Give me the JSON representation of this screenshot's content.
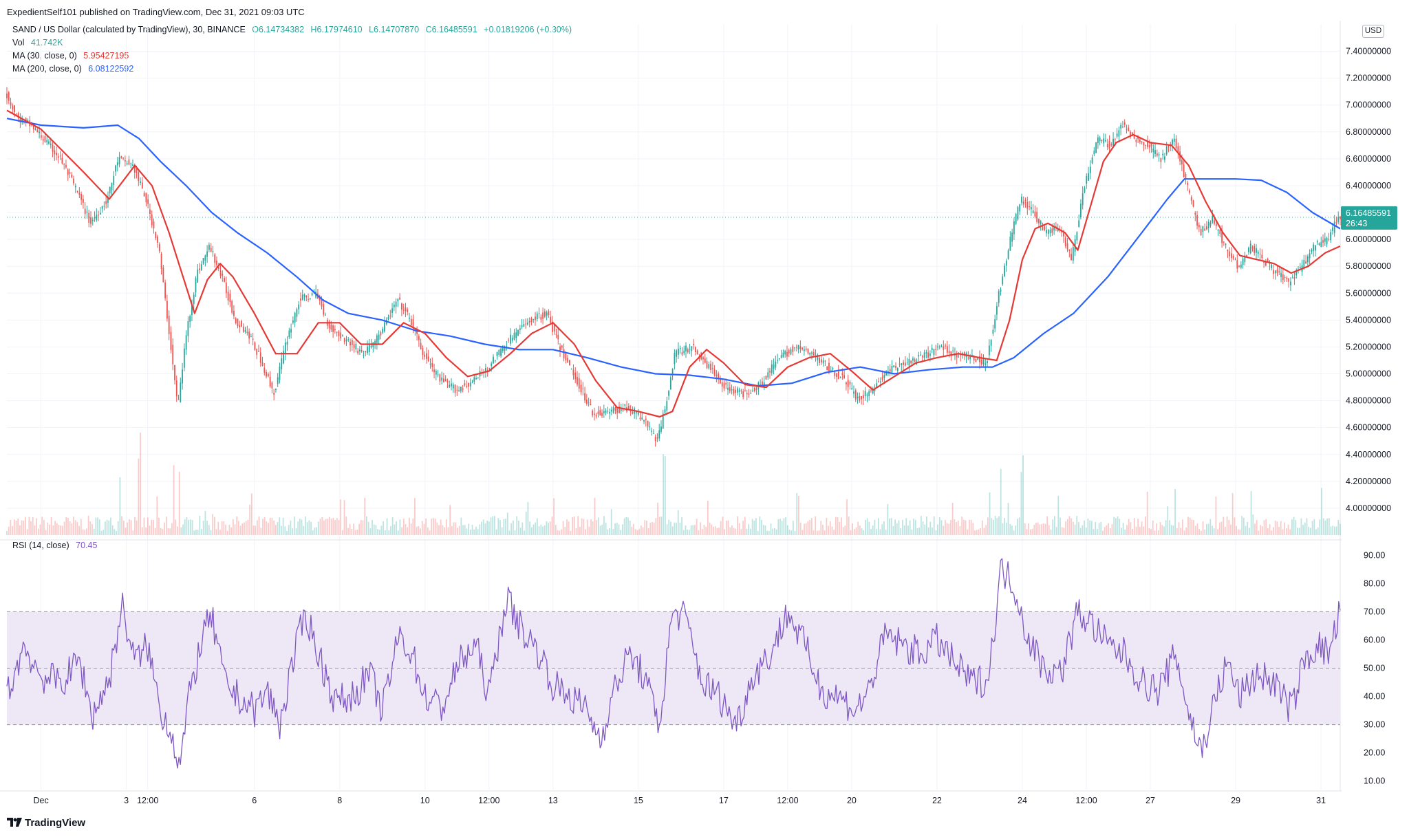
{
  "header": {
    "title": "ExpedientSelf101 published on TradingView.com, Dec 31, 2021 09:03 UTC"
  },
  "legend": {
    "symbol": "SAND / US Dollar (calculated by TradingView), 30, BINANCE",
    "open": "O6.14734382",
    "high": "H6.17974610",
    "low": "L6.14707870",
    "close": "C6.16485591",
    "change": "+0.01819206 (+0.30%)",
    "vol_label": "Vol",
    "vol_value": "41.742K",
    "ma30_label": "MA (30, close, 0)",
    "ma30_value": "5.95427195",
    "ma200_label": "MA (200, close, 0)",
    "ma200_value": "6.08122592",
    "rsi_label": "RSI (14, close)",
    "rsi_value": "70.45"
  },
  "price_axis": {
    "unit": "USD",
    "last_price": "6.16485591",
    "countdown": "26:43"
  },
  "brand": {
    "name": "TradingView"
  },
  "colors": {
    "up": "#26a69a",
    "down": "#ef5350",
    "ma30": "#e53935",
    "ma200": "#2962ff",
    "rsi": "#7e57c2",
    "rsi_band": "#ede7f6",
    "grid": "#f0f3fa"
  },
  "chart_data": [
    {
      "type": "candlestick",
      "title": "SAND / US Dollar (calculated by TradingView), 30, BINANCE",
      "timeframe": "30",
      "ylim": [
        3.8,
        7.5
      ],
      "y_ticks": [
        "7.40000000",
        "7.20000000",
        "7.00000000",
        "6.80000000",
        "6.60000000",
        "6.40000000",
        "6.20000000",
        "6.00000000",
        "5.80000000",
        "5.60000000",
        "5.40000000",
        "5.20000000",
        "5.00000000",
        "4.80000000",
        "4.60000000",
        "4.40000000",
        "4.20000000",
        "4.00000000"
      ],
      "x_ticks": [
        "Dec",
        "3",
        "12:00",
        "6",
        "8",
        "10",
        "12:00",
        "13",
        "15",
        "17",
        "12:00",
        "20",
        "22",
        "24",
        "12:00",
        "27",
        "29",
        "31"
      ],
      "x_tick_days": [
        1,
        3,
        3.5,
        6,
        8,
        10,
        11.5,
        13,
        15,
        17,
        18.5,
        20,
        22,
        24,
        25.5,
        27,
        29,
        31
      ],
      "x_range_days": [
        0.2,
        31.45
      ],
      "price_path": [
        [
          0.2,
          7.1
        ],
        [
          0.5,
          6.9
        ],
        [
          0.8,
          6.85
        ],
        [
          1.1,
          6.75
        ],
        [
          1.5,
          6.6
        ],
        [
          1.9,
          6.35
        ],
        [
          2.2,
          6.12
        ],
        [
          2.6,
          6.3
        ],
        [
          2.85,
          6.6
        ],
        [
          3.2,
          6.55
        ],
        [
          3.5,
          6.3
        ],
        [
          3.8,
          5.95
        ],
        [
          4.05,
          5.3
        ],
        [
          4.25,
          4.75
        ],
        [
          4.45,
          5.3
        ],
        [
          4.7,
          5.75
        ],
        [
          5.0,
          5.95
        ],
        [
          5.3,
          5.7
        ],
        [
          5.6,
          5.4
        ],
        [
          5.9,
          5.3
        ],
        [
          6.2,
          5.1
        ],
        [
          6.5,
          4.85
        ],
        [
          6.8,
          5.25
        ],
        [
          7.1,
          5.55
        ],
        [
          7.5,
          5.6
        ],
        [
          7.8,
          5.35
        ],
        [
          8.2,
          5.25
        ],
        [
          8.6,
          5.15
        ],
        [
          9.0,
          5.3
        ],
        [
          9.4,
          5.55
        ],
        [
          9.7,
          5.4
        ],
        [
          10.0,
          5.15
        ],
        [
          10.4,
          4.95
        ],
        [
          10.8,
          4.88
        ],
        [
          11.2,
          4.95
        ],
        [
          11.6,
          5.08
        ],
        [
          12.0,
          5.25
        ],
        [
          12.5,
          5.4
        ],
        [
          12.9,
          5.45
        ],
        [
          13.2,
          5.2
        ],
        [
          13.6,
          4.95
        ],
        [
          14.0,
          4.7
        ],
        [
          14.4,
          4.72
        ],
        [
          14.8,
          4.75
        ],
        [
          15.2,
          4.65
        ],
        [
          15.5,
          4.5
        ],
        [
          15.7,
          4.8
        ],
        [
          15.9,
          5.15
        ],
        [
          16.3,
          5.2
        ],
        [
          16.7,
          5.05
        ],
        [
          17.1,
          4.9
        ],
        [
          17.5,
          4.85
        ],
        [
          17.9,
          4.92
        ],
        [
          18.3,
          5.1
        ],
        [
          18.7,
          5.2
        ],
        [
          19.1,
          5.15
        ],
        [
          19.5,
          5.05
        ],
        [
          19.9,
          4.95
        ],
        [
          20.2,
          4.8
        ],
        [
          20.5,
          4.88
        ],
        [
          20.9,
          5.02
        ],
        [
          21.3,
          5.08
        ],
        [
          21.7,
          5.12
        ],
        [
          22.1,
          5.2
        ],
        [
          22.5,
          5.15
        ],
        [
          22.9,
          5.12
        ],
        [
          23.2,
          5.08
        ],
        [
          23.5,
          5.6
        ],
        [
          23.8,
          6.05
        ],
        [
          24.0,
          6.3
        ],
        [
          24.3,
          6.2
        ],
        [
          24.6,
          6.05
        ],
        [
          24.9,
          6.1
        ],
        [
          25.2,
          5.85
        ],
        [
          25.5,
          6.4
        ],
        [
          25.8,
          6.75
        ],
        [
          26.1,
          6.7
        ],
        [
          26.4,
          6.85
        ],
        [
          26.7,
          6.75
        ],
        [
          27.0,
          6.7
        ],
        [
          27.3,
          6.6
        ],
        [
          27.6,
          6.75
        ],
        [
          27.9,
          6.4
        ],
        [
          28.2,
          6.05
        ],
        [
          28.5,
          6.15
        ],
        [
          28.8,
          5.95
        ],
        [
          29.1,
          5.8
        ],
        [
          29.4,
          5.95
        ],
        [
          29.7,
          5.85
        ],
        [
          30.0,
          5.75
        ],
        [
          30.3,
          5.68
        ],
        [
          30.6,
          5.8
        ],
        [
          30.9,
          5.95
        ],
        [
          31.2,
          6.0
        ],
        [
          31.45,
          6.16
        ]
      ],
      "ma30": [
        [
          0.2,
          6.96
        ],
        [
          1.0,
          6.82
        ],
        [
          2.0,
          6.5
        ],
        [
          2.6,
          6.3
        ],
        [
          3.2,
          6.55
        ],
        [
          3.6,
          6.4
        ],
        [
          4.0,
          6.05
        ],
        [
          4.3,
          5.75
        ],
        [
          4.6,
          5.45
        ],
        [
          4.9,
          5.7
        ],
        [
          5.2,
          5.82
        ],
        [
          5.5,
          5.72
        ],
        [
          6.0,
          5.45
        ],
        [
          6.5,
          5.15
        ],
        [
          7.0,
          5.15
        ],
        [
          7.5,
          5.38
        ],
        [
          8.0,
          5.38
        ],
        [
          8.5,
          5.22
        ],
        [
          9.0,
          5.22
        ],
        [
          9.5,
          5.38
        ],
        [
          10.0,
          5.3
        ],
        [
          10.5,
          5.12
        ],
        [
          11.0,
          4.98
        ],
        [
          11.5,
          5.02
        ],
        [
          12.0,
          5.15
        ],
        [
          12.5,
          5.3
        ],
        [
          13.0,
          5.38
        ],
        [
          13.5,
          5.22
        ],
        [
          14.0,
          4.95
        ],
        [
          14.5,
          4.75
        ],
        [
          15.0,
          4.72
        ],
        [
          15.5,
          4.68
        ],
        [
          15.8,
          4.72
        ],
        [
          16.2,
          5.05
        ],
        [
          16.6,
          5.18
        ],
        [
          17.0,
          5.08
        ],
        [
          17.5,
          4.92
        ],
        [
          18.0,
          4.9
        ],
        [
          18.5,
          5.05
        ],
        [
          19.0,
          5.12
        ],
        [
          19.5,
          5.15
        ],
        [
          20.0,
          5.02
        ],
        [
          20.5,
          4.88
        ],
        [
          21.0,
          4.98
        ],
        [
          21.5,
          5.08
        ],
        [
          22.0,
          5.12
        ],
        [
          22.5,
          5.15
        ],
        [
          23.0,
          5.12
        ],
        [
          23.4,
          5.1
        ],
        [
          23.7,
          5.4
        ],
        [
          24.0,
          5.85
        ],
        [
          24.3,
          6.08
        ],
        [
          24.6,
          6.12
        ],
        [
          25.0,
          6.05
        ],
        [
          25.3,
          5.92
        ],
        [
          25.6,
          6.25
        ],
        [
          25.9,
          6.58
        ],
        [
          26.2,
          6.72
        ],
        [
          26.6,
          6.78
        ],
        [
          27.0,
          6.72
        ],
        [
          27.5,
          6.7
        ],
        [
          27.9,
          6.55
        ],
        [
          28.3,
          6.28
        ],
        [
          28.7,
          6.05
        ],
        [
          29.1,
          5.88
        ],
        [
          29.5,
          5.85
        ],
        [
          29.9,
          5.82
        ],
        [
          30.3,
          5.75
        ],
        [
          30.7,
          5.8
        ],
        [
          31.1,
          5.9
        ],
        [
          31.45,
          5.95
        ]
      ],
      "ma200": [
        [
          0.2,
          6.9
        ],
        [
          1.0,
          6.85
        ],
        [
          2.0,
          6.83
        ],
        [
          2.8,
          6.85
        ],
        [
          3.3,
          6.75
        ],
        [
          3.8,
          6.58
        ],
        [
          4.4,
          6.4
        ],
        [
          5.0,
          6.2
        ],
        [
          5.6,
          6.05
        ],
        [
          6.3,
          5.9
        ],
        [
          7.0,
          5.72
        ],
        [
          7.6,
          5.55
        ],
        [
          8.2,
          5.45
        ],
        [
          9.0,
          5.4
        ],
        [
          9.8,
          5.32
        ],
        [
          10.6,
          5.28
        ],
        [
          11.4,
          5.22
        ],
        [
          12.2,
          5.18
        ],
        [
          13.0,
          5.18
        ],
        [
          13.8,
          5.12
        ],
        [
          14.6,
          5.05
        ],
        [
          15.4,
          5.0
        ],
        [
          16.2,
          4.99
        ],
        [
          17.0,
          4.96
        ],
        [
          17.8,
          4.91
        ],
        [
          18.6,
          4.93
        ],
        [
          19.4,
          5.01
        ],
        [
          20.2,
          5.05
        ],
        [
          21.0,
          5.0
        ],
        [
          21.8,
          5.03
        ],
        [
          22.6,
          5.05
        ],
        [
          23.3,
          5.05
        ],
        [
          23.8,
          5.12
        ],
        [
          24.5,
          5.3
        ],
        [
          25.2,
          5.45
        ],
        [
          26.0,
          5.72
        ],
        [
          26.8,
          6.05
        ],
        [
          27.4,
          6.3
        ],
        [
          27.8,
          6.45
        ],
        [
          28.3,
          6.45
        ],
        [
          29.0,
          6.45
        ],
        [
          29.6,
          6.44
        ],
        [
          30.2,
          6.35
        ],
        [
          30.8,
          6.2
        ],
        [
          31.45,
          6.08
        ]
      ]
    },
    {
      "type": "line",
      "title": "RSI (14, close)",
      "ylim": [
        7,
        93
      ],
      "y_ticks": [
        "90.00",
        "80.00",
        "70.00",
        "60.00",
        "50.00",
        "40.00",
        "30.00",
        "20.00",
        "10.00"
      ],
      "bands": {
        "upper": 70,
        "middle": 50,
        "lower": 30
      },
      "values_path": [
        [
          0.2,
          40
        ],
        [
          0.6,
          58
        ],
        [
          1.0,
          47
        ],
        [
          1.5,
          45
        ],
        [
          1.9,
          53
        ],
        [
          2.2,
          33
        ],
        [
          2.6,
          46
        ],
        [
          2.9,
          72
        ],
        [
          3.2,
          52
        ],
        [
          3.5,
          58
        ],
        [
          3.8,
          35
        ],
        [
          4.05,
          28
        ],
        [
          4.25,
          15
        ],
        [
          4.5,
          42
        ],
        [
          4.8,
          62
        ],
        [
          5.0,
          68
        ],
        [
          5.3,
          45
        ],
        [
          5.6,
          40
        ],
        [
          6.0,
          35
        ],
        [
          6.3,
          42
        ],
        [
          6.6,
          30
        ],
        [
          6.9,
          52
        ],
        [
          7.2,
          70
        ],
        [
          7.5,
          55
        ],
        [
          7.9,
          38
        ],
        [
          8.3,
          40
        ],
        [
          8.7,
          48
        ],
        [
          9.0,
          35
        ],
        [
          9.4,
          62
        ],
        [
          9.7,
          55
        ],
        [
          10.0,
          40
        ],
        [
          10.4,
          36
        ],
        [
          10.8,
          52
        ],
        [
          11.2,
          58
        ],
        [
          11.5,
          40
        ],
        [
          11.9,
          75
        ],
        [
          12.3,
          63
        ],
        [
          12.7,
          55
        ],
        [
          13.0,
          44
        ],
        [
          13.4,
          40
        ],
        [
          13.8,
          35
        ],
        [
          14.1,
          25
        ],
        [
          14.5,
          45
        ],
        [
          14.8,
          55
        ],
        [
          15.1,
          48
        ],
        [
          15.5,
          30
        ],
        [
          15.8,
          70
        ],
        [
          16.1,
          68
        ],
        [
          16.5,
          45
        ],
        [
          16.9,
          40
        ],
        [
          17.3,
          30
        ],
        [
          17.7,
          48
        ],
        [
          18.1,
          55
        ],
        [
          18.5,
          70
        ],
        [
          18.9,
          58
        ],
        [
          19.3,
          42
        ],
        [
          19.7,
          40
        ],
        [
          20.1,
          35
        ],
        [
          20.4,
          42
        ],
        [
          20.8,
          62
        ],
        [
          21.2,
          58
        ],
        [
          21.6,
          55
        ],
        [
          22.0,
          60
        ],
        [
          22.4,
          52
        ],
        [
          22.8,
          45
        ],
        [
          23.2,
          46
        ],
        [
          23.5,
          85
        ],
        [
          23.8,
          80
        ],
        [
          24.1,
          62
        ],
        [
          24.5,
          50
        ],
        [
          24.9,
          48
        ],
        [
          25.3,
          70
        ],
        [
          25.6,
          66
        ],
        [
          26.0,
          58
        ],
        [
          26.4,
          55
        ],
        [
          26.8,
          45
        ],
        [
          27.2,
          42
        ],
        [
          27.6,
          55
        ],
        [
          27.9,
          34
        ],
        [
          28.2,
          20
        ],
        [
          28.5,
          38
        ],
        [
          28.8,
          52
        ],
        [
          29.1,
          40
        ],
        [
          29.5,
          48
        ],
        [
          29.9,
          45
        ],
        [
          30.3,
          35
        ],
        [
          30.6,
          52
        ],
        [
          30.9,
          58
        ],
        [
          31.2,
          55
        ],
        [
          31.45,
          70.45
        ]
      ]
    }
  ]
}
